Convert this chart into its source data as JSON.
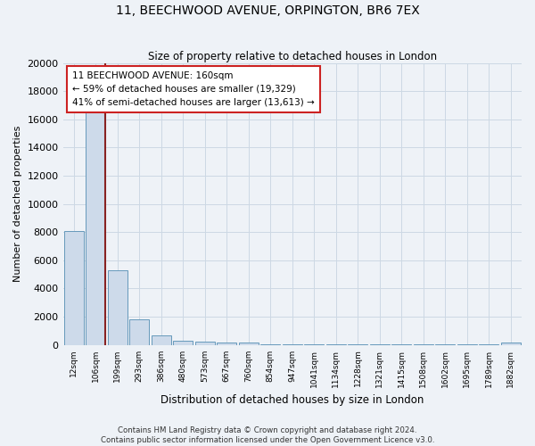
{
  "title": "11, BEECHWOOD AVENUE, ORPINGTON, BR6 7EX",
  "subtitle": "Size of property relative to detached houses in London",
  "xlabel": "Distribution of detached houses by size in London",
  "ylabel": "Number of detached properties",
  "bin_labels": [
    "12sqm",
    "106sqm",
    "199sqm",
    "293sqm",
    "386sqm",
    "480sqm",
    "573sqm",
    "667sqm",
    "760sqm",
    "854sqm",
    "947sqm",
    "1041sqm",
    "1134sqm",
    "1228sqm",
    "1321sqm",
    "1415sqm",
    "1508sqm",
    "1602sqm",
    "1695sqm",
    "1789sqm",
    "1882sqm"
  ],
  "bar_values": [
    8100,
    16600,
    5300,
    1800,
    700,
    300,
    250,
    180,
    150,
    50,
    50,
    50,
    50,
    50,
    50,
    50,
    50,
    50,
    50,
    50,
    150
  ],
  "bar_color": "#cddaea",
  "bar_edge_color": "#6699bb",
  "red_line_bin": 1,
  "red_line_color": "#882222",
  "ylim": [
    0,
    20000
  ],
  "yticks": [
    0,
    2000,
    4000,
    6000,
    8000,
    10000,
    12000,
    14000,
    16000,
    18000,
    20000
  ],
  "annotation_title": "11 BEECHWOOD AVENUE: 160sqm",
  "annotation_line1": "← 59% of detached houses are smaller (19,329)",
  "annotation_line2": "41% of semi-detached houses are larger (13,613) →",
  "annotation_box_facecolor": "#ffffff",
  "annotation_box_edgecolor": "#cc2222",
  "footer_line1": "Contains HM Land Registry data © Crown copyright and database right 2024.",
  "footer_line2": "Contains public sector information licensed under the Open Government Licence v3.0.",
  "background_color": "#eef2f7",
  "grid_color": "#ccd8e4"
}
